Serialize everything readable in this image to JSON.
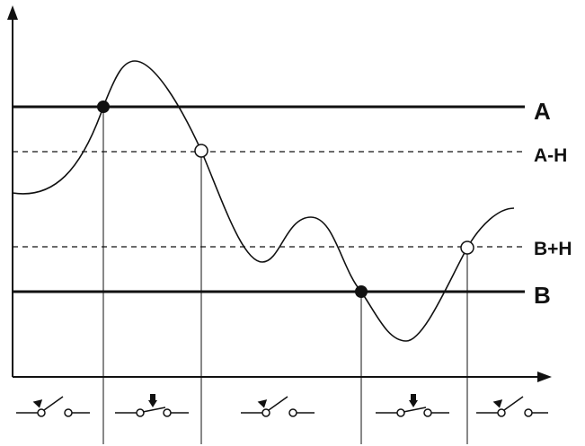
{
  "levels": [
    {
      "id": "A",
      "label": "A",
      "style": "solid"
    },
    {
      "id": "A-H",
      "label": "A-H",
      "style": "dashed"
    },
    {
      "id": "B+H",
      "label": "B+H",
      "style": "dashed"
    },
    {
      "id": "B",
      "label": "B",
      "style": "solid"
    }
  ],
  "crossing_points": [
    {
      "level": "A",
      "marker": "filled"
    },
    {
      "level": "A-H",
      "marker": "open"
    },
    {
      "level": "B",
      "marker": "filled"
    },
    {
      "level": "B+H",
      "marker": "open"
    }
  ],
  "switch_states": [
    {
      "state": "open",
      "icon": "switch-open-icon"
    },
    {
      "state": "closed",
      "icon": "switch-closed-icon"
    },
    {
      "state": "open",
      "icon": "switch-open-icon"
    },
    {
      "state": "closed",
      "icon": "switch-closed-icon"
    },
    {
      "state": "open",
      "icon": "switch-open-icon"
    }
  ],
  "colors": {
    "stroke": "#111111",
    "background": "#ffffff"
  }
}
